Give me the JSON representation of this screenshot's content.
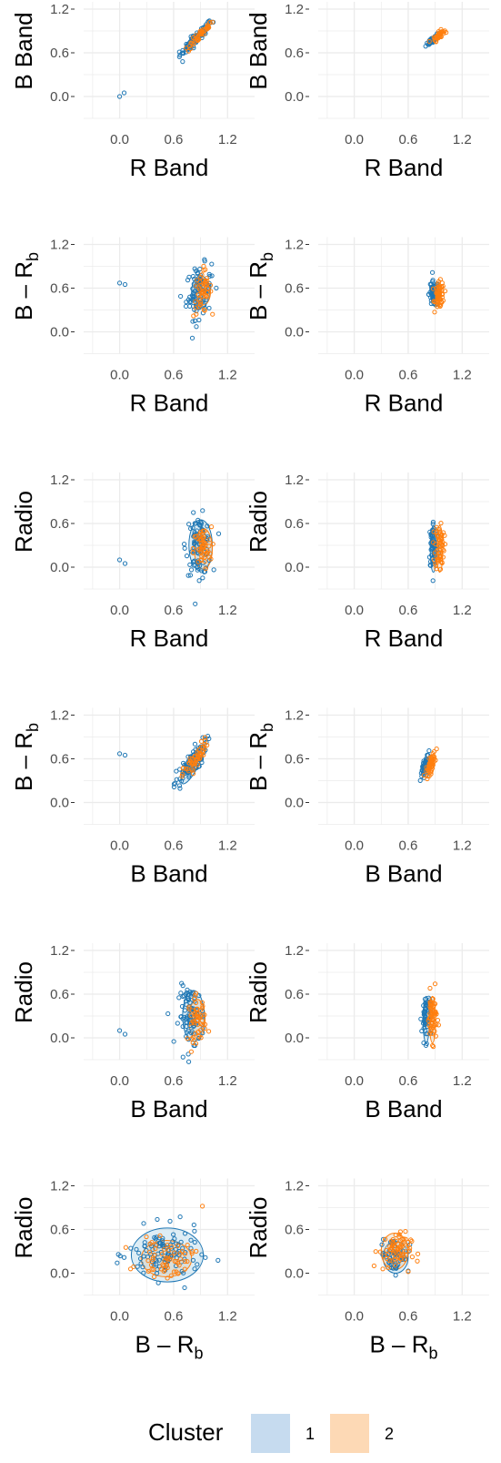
{
  "colors": {
    "cluster1": "#1f77b4",
    "cluster2": "#ff7f0e",
    "cluster1_fill": "#c6dbef",
    "cluster2_fill": "#fdd9b5",
    "grid": "#ebebeb",
    "tick_text": "#4d4d4d"
  },
  "legend": {
    "title": "Cluster",
    "items": [
      {
        "label": "1",
        "color": "#c6dbef"
      },
      {
        "label": "2",
        "color": "#fdd9b5"
      }
    ],
    "position": "bottom"
  },
  "chart_data": [
    {
      "type": "scatter",
      "row": 1,
      "col": 1,
      "xlabel": "R Band",
      "ylabel": "B Band",
      "xlim": [
        -0.4,
        1.5
      ],
      "ylim": [
        -0.3,
        1.3
      ],
      "xticks": [
        "0.0",
        "0.6",
        "1.2"
      ],
      "yticks": [
        "0.0",
        "0.6",
        "1.2"
      ],
      "grid": true,
      "series": [
        {
          "cluster": "1",
          "center": [
            0.85,
            0.8
          ],
          "spread": [
            0.09,
            0.12
          ],
          "corr": 0.95,
          "n": 80,
          "ellipses": [
            [
              0.85,
              0.8,
              0.15,
              0.04,
              40
            ]
          ],
          "extra": [
            [
              0.0,
              0.0
            ],
            [
              0.05,
              0.05
            ],
            [
              0.7,
              0.48
            ]
          ]
        },
        {
          "cluster": "2",
          "center": [
            0.9,
            0.85
          ],
          "spread": [
            0.07,
            0.1
          ],
          "corr": 0.95,
          "n": 45,
          "ellipses": [
            [
              0.9,
              0.86,
              0.12,
              0.035,
              40
            ]
          ]
        }
      ]
    },
    {
      "type": "scatter",
      "row": 1,
      "col": 2,
      "xlabel": "R Band",
      "ylabel": "B Band",
      "xlim": [
        -0.4,
        1.5
      ],
      "ylim": [
        -0.3,
        1.3
      ],
      "xticks": [
        "0.0",
        "0.6",
        "1.2"
      ],
      "yticks": [
        "0.0",
        "0.6",
        "1.2"
      ],
      "grid": true,
      "series": [
        {
          "cluster": "1",
          "center": [
            0.87,
            0.78
          ],
          "spread": [
            0.035,
            0.04
          ],
          "corr": 0.8,
          "n": 50,
          "ellipses": []
        },
        {
          "cluster": "2",
          "center": [
            0.94,
            0.84
          ],
          "spread": [
            0.03,
            0.04
          ],
          "corr": 0.8,
          "n": 40,
          "ellipses": []
        }
      ]
    },
    {
      "type": "scatter",
      "row": 2,
      "col": 1,
      "xlabel": "R Band",
      "ylabel": "B – R_b",
      "xlim": [
        -0.4,
        1.5
      ],
      "ylim": [
        -0.3,
        1.3
      ],
      "xticks": [
        "0.0",
        "0.6",
        "1.2"
      ],
      "yticks": [
        "0.0",
        "0.6",
        "1.2"
      ],
      "grid": true,
      "series": [
        {
          "cluster": "1",
          "center": [
            0.88,
            0.55
          ],
          "spread": [
            0.07,
            0.18
          ],
          "corr": 0.2,
          "n": 90,
          "ellipses": [
            [
              0.9,
              0.55,
              0.1,
              0.22,
              0
            ]
          ]
        },
        {
          "cluster": "2",
          "center": [
            0.92,
            0.55
          ],
          "spread": [
            0.05,
            0.15
          ],
          "corr": 0.2,
          "n": 50,
          "ellipses": [
            [
              0.93,
              0.55,
              0.08,
              0.18,
              0
            ]
          ]
        }
      ],
      "extra1": [
        [
          0.0,
          0.67
        ],
        [
          0.06,
          0.65
        ]
      ]
    },
    {
      "type": "scatter",
      "row": 2,
      "col": 2,
      "xlabel": "R Band",
      "ylabel": "B – R_b",
      "xlim": [
        -0.4,
        1.5
      ],
      "ylim": [
        -0.3,
        1.3
      ],
      "xticks": [
        "0.0",
        "0.6",
        "1.2"
      ],
      "yticks": [
        "0.0",
        "0.6",
        "1.2"
      ],
      "grid": true,
      "series": [
        {
          "cluster": "1",
          "center": [
            0.88,
            0.52
          ],
          "spread": [
            0.025,
            0.09
          ],
          "corr": 0.0,
          "n": 60,
          "ellipses": []
        },
        {
          "cluster": "2",
          "center": [
            0.95,
            0.5
          ],
          "spread": [
            0.025,
            0.09
          ],
          "corr": 0.0,
          "n": 60,
          "ellipses": []
        }
      ]
    },
    {
      "type": "scatter",
      "row": 3,
      "col": 1,
      "xlabel": "R Band",
      "ylabel": "Radio",
      "xlim": [
        -0.4,
        1.5
      ],
      "ylim": [
        -0.3,
        1.3
      ],
      "xticks": [
        "0.0",
        "0.6",
        "1.2"
      ],
      "yticks": [
        "0.0",
        "0.6",
        "1.2"
      ],
      "grid": true,
      "series": [
        {
          "cluster": "1",
          "center": [
            0.88,
            0.3
          ],
          "spread": [
            0.07,
            0.2
          ],
          "corr": 0.0,
          "n": 90,
          "ellipses": [
            [
              0.9,
              0.3,
              0.13,
              0.35,
              0
            ]
          ]
        },
        {
          "cluster": "2",
          "center": [
            0.92,
            0.25
          ],
          "spread": [
            0.05,
            0.15
          ],
          "corr": 0.0,
          "n": 50,
          "ellipses": [
            [
              0.93,
              0.25,
              0.1,
              0.28,
              0
            ]
          ]
        }
      ],
      "extra1": [
        [
          0.0,
          0.1
        ],
        [
          0.06,
          0.05
        ]
      ]
    },
    {
      "type": "scatter",
      "row": 3,
      "col": 2,
      "xlabel": "R Band",
      "ylabel": "Radio",
      "xlim": [
        -0.4,
        1.5
      ],
      "ylim": [
        -0.3,
        1.3
      ],
      "xticks": [
        "0.0",
        "0.6",
        "1.2"
      ],
      "yticks": [
        "0.0",
        "0.6",
        "1.2"
      ],
      "grid": true,
      "series": [
        {
          "cluster": "1",
          "center": [
            0.88,
            0.3
          ],
          "spread": [
            0.025,
            0.17
          ],
          "corr": 0.0,
          "n": 60,
          "ellipses": [
            [
              0.88,
              0.25,
              0.035,
              0.32,
              0
            ]
          ]
        },
        {
          "cluster": "2",
          "center": [
            0.95,
            0.3
          ],
          "spread": [
            0.025,
            0.17
          ],
          "corr": 0.0,
          "n": 60,
          "ellipses": [
            [
              0.95,
              0.25,
              0.035,
              0.32,
              0
            ]
          ]
        }
      ]
    },
    {
      "type": "scatter",
      "row": 4,
      "col": 1,
      "xlabel": "B Band",
      "ylabel": "B – R_b",
      "xlim": [
        -0.4,
        1.5
      ],
      "ylim": [
        -0.3,
        1.3
      ],
      "xticks": [
        "0.0",
        "0.6",
        "1.2"
      ],
      "yticks": [
        "0.0",
        "0.6",
        "1.2"
      ],
      "grid": true,
      "series": [
        {
          "cluster": "1",
          "center": [
            0.78,
            0.5
          ],
          "spread": [
            0.09,
            0.17
          ],
          "corr": 0.85,
          "n": 90,
          "ellipses": [
            [
              0.8,
              0.5,
              0.22,
              0.08,
              62
            ]
          ]
        },
        {
          "cluster": "2",
          "center": [
            0.85,
            0.6
          ],
          "spread": [
            0.07,
            0.13
          ],
          "corr": 0.85,
          "n": 50,
          "ellipses": [
            [
              0.86,
              0.6,
              0.18,
              0.06,
              62
            ]
          ]
        }
      ],
      "extra1": [
        [
          0.0,
          0.67
        ],
        [
          0.06,
          0.65
        ]
      ]
    },
    {
      "type": "scatter",
      "row": 4,
      "col": 2,
      "xlabel": "B Band",
      "ylabel": "B – R_b",
      "xlim": [
        -0.4,
        1.5
      ],
      "ylim": [
        -0.3,
        1.3
      ],
      "xticks": [
        "0.0",
        "0.6",
        "1.2"
      ],
      "yticks": [
        "0.0",
        "0.6",
        "1.2"
      ],
      "grid": true,
      "series": [
        {
          "cluster": "1",
          "center": [
            0.79,
            0.5
          ],
          "spread": [
            0.025,
            0.08
          ],
          "corr": 0.7,
          "n": 60,
          "ellipses": []
        },
        {
          "cluster": "2",
          "center": [
            0.85,
            0.52
          ],
          "spread": [
            0.025,
            0.08
          ],
          "corr": 0.7,
          "n": 60,
          "ellipses": []
        }
      ]
    },
    {
      "type": "scatter",
      "row": 5,
      "col": 1,
      "xlabel": "B Band",
      "ylabel": "Radio",
      "xlim": [
        -0.4,
        1.5
      ],
      "ylim": [
        -0.3,
        1.3
      ],
      "xticks": [
        "0.0",
        "0.6",
        "1.2"
      ],
      "yticks": [
        "0.0",
        "0.6",
        "1.2"
      ],
      "grid": true,
      "series": [
        {
          "cluster": "1",
          "center": [
            0.8,
            0.3
          ],
          "spread": [
            0.07,
            0.2
          ],
          "corr": 0.0,
          "n": 90,
          "ellipses": [
            [
              0.82,
              0.3,
              0.12,
              0.35,
              0
            ]
          ]
        },
        {
          "cluster": "2",
          "center": [
            0.86,
            0.25
          ],
          "spread": [
            0.05,
            0.15
          ],
          "corr": 0.0,
          "n": 50,
          "ellipses": [
            [
              0.86,
              0.25,
              0.09,
              0.28,
              0
            ]
          ]
        }
      ],
      "extra1": [
        [
          0.0,
          0.1
        ],
        [
          0.06,
          0.05
        ]
      ]
    },
    {
      "type": "scatter",
      "row": 5,
      "col": 2,
      "xlabel": "B Band",
      "ylabel": "Radio",
      "xlim": [
        -0.4,
        1.5
      ],
      "ylim": [
        -0.3,
        1.3
      ],
      "xticks": [
        "0.0",
        "0.6",
        "1.2"
      ],
      "yticks": [
        "0.0",
        "0.6",
        "1.2"
      ],
      "grid": true,
      "series": [
        {
          "cluster": "1",
          "center": [
            0.8,
            0.3
          ],
          "spread": [
            0.025,
            0.17
          ],
          "corr": 0.0,
          "n": 60,
          "ellipses": [
            [
              0.8,
              0.25,
              0.035,
              0.32,
              0
            ]
          ]
        },
        {
          "cluster": "2",
          "center": [
            0.87,
            0.3
          ],
          "spread": [
            0.025,
            0.17
          ],
          "corr": 0.0,
          "n": 60,
          "ellipses": [
            [
              0.87,
              0.25,
              0.035,
              0.32,
              0
            ]
          ]
        }
      ]
    },
    {
      "type": "scatter",
      "row": 6,
      "col": 1,
      "xlabel": "B – R_b",
      "ylabel": "Radio",
      "xlim": [
        -0.4,
        1.5
      ],
      "ylim": [
        -0.3,
        1.3
      ],
      "xticks": [
        "0.0",
        "0.6",
        "1.2"
      ],
      "yticks": [
        "0.0",
        "0.6",
        "1.2"
      ],
      "grid": true,
      "series": [
        {
          "cluster": "1",
          "center": [
            0.5,
            0.25
          ],
          "spread": [
            0.2,
            0.18
          ],
          "corr": 0.0,
          "n": 110,
          "ellipses": [
            [
              0.53,
              0.25,
              0.4,
              0.37,
              0
            ]
          ]
        },
        {
          "cluster": "2",
          "center": [
            0.52,
            0.2
          ],
          "spread": [
            0.15,
            0.12
          ],
          "corr": 0.0,
          "n": 60,
          "ellipses": [
            [
              0.52,
              0.2,
              0.28,
              0.25,
              0
            ]
          ]
        }
      ],
      "extra2": [
        [
          0.92,
          0.92
        ]
      ]
    },
    {
      "type": "scatter",
      "row": 6,
      "col": 2,
      "xlabel": "B – R_b",
      "ylabel": "Radio",
      "xlim": [
        -0.4,
        1.5
      ],
      "ylim": [
        -0.3,
        1.3
      ],
      "xticks": [
        "0.0",
        "0.6",
        "1.2"
      ],
      "yticks": [
        "0.0",
        "0.6",
        "1.2"
      ],
      "grid": true,
      "series": [
        {
          "cluster": "1",
          "center": [
            0.45,
            0.25
          ],
          "spread": [
            0.08,
            0.12
          ],
          "corr": 0.0,
          "n": 50,
          "ellipses": [
            [
              0.46,
              0.22,
              0.14,
              0.22,
              0
            ]
          ]
        },
        {
          "cluster": "2",
          "center": [
            0.45,
            0.3
          ],
          "spread": [
            0.09,
            0.13
          ],
          "corr": 0.0,
          "n": 70,
          "ellipses": [
            [
              0.45,
              0.3,
              0.15,
              0.25,
              0
            ]
          ]
        }
      ]
    }
  ]
}
